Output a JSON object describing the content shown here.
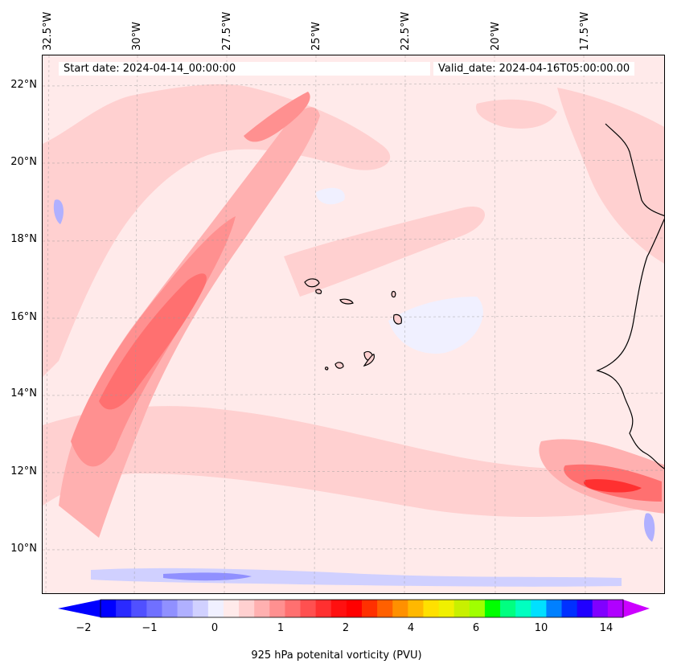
{
  "start_date_text": "Start date: 2024-04-14_00:00:00",
  "valid_date_text": "Valid_date: 2024-04-16T05:00:00.00",
  "lon_labels": [
    "32.5°W",
    "30°W",
    "27.5°W",
    "25°W",
    "22.5°W",
    "20°W",
    "17.5°W"
  ],
  "lat_labels": [
    "22°N",
    "20°N",
    "18°N",
    "16°N",
    "14°N",
    "12°N",
    "10°N"
  ],
  "colorbar": {
    "label": "925 hPa potenital vorticity (PVU)",
    "ticks": [
      "−2",
      "−1",
      "0",
      "1",
      "2",
      "4",
      "6",
      "10",
      "14"
    ],
    "colors": [
      "#0000ff",
      "#2a2aff",
      "#5050ff",
      "#7070ff",
      "#9090ff",
      "#b0b0ff",
      "#d0d0ff",
      "#f0f0ff",
      "#ffeaea",
      "#ffd0d0",
      "#ffb0b0",
      "#ff9090",
      "#ff7070",
      "#ff5050",
      "#ff3030",
      "#ff1010",
      "#ff0000",
      "#ff3000",
      "#ff6000",
      "#ff9000",
      "#ffb800",
      "#ffe000",
      "#f0f000",
      "#c8f000",
      "#a0ff00",
      "#00ff00",
      "#00ff80",
      "#00ffc0",
      "#00e0ff",
      "#0080ff",
      "#0030ff",
      "#2000ff",
      "#8000ff",
      "#b000ff"
    ],
    "min_color": "#0000ff",
    "max_color": "#cc00ff"
  }
}
